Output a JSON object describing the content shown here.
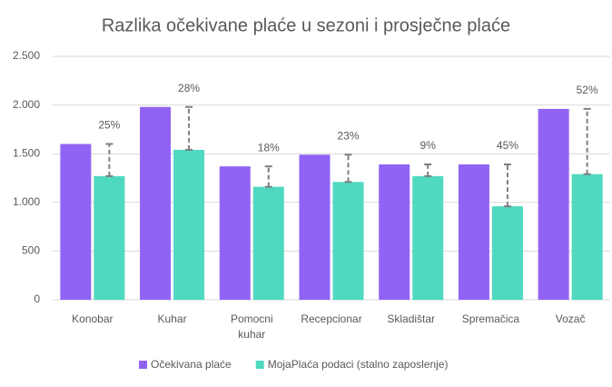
{
  "chart_data": {
    "type": "bar",
    "title": "Razlika očekivane plaće u sezoni i prosječne plaće",
    "categories": [
      "Konobar",
      "Kuhar",
      "Pomocni kuhar",
      "Recepcionar",
      "Skladištar",
      "Spremačica",
      "Vozač"
    ],
    "series": [
      {
        "name": "Očekivana plaće",
        "color": "#9163f5",
        "values": [
          1600,
          1980,
          1370,
          1490,
          1390,
          1390,
          1960
        ]
      },
      {
        "name": "MojaPlaća podaci (stalno zaposlenje)",
        "color": "#4ed9c0",
        "values": [
          1270,
          1540,
          1160,
          1210,
          1270,
          960,
          1290
        ]
      }
    ],
    "difference_labels": [
      "25%",
      "28%",
      "18%",
      "23%",
      "9%",
      "45%",
      "52%"
    ],
    "ylim": [
      0,
      2500
    ],
    "yticks": [
      0,
      500,
      {
        "value": 1000,
        "label": "1.000"
      },
      {
        "value": 1500,
        "label": "1.500"
      },
      {
        "value": 2000,
        "label": "2.000"
      },
      {
        "value": 2500,
        "label": "2.500"
      }
    ],
    "grid": true,
    "legend": "bottom"
  }
}
